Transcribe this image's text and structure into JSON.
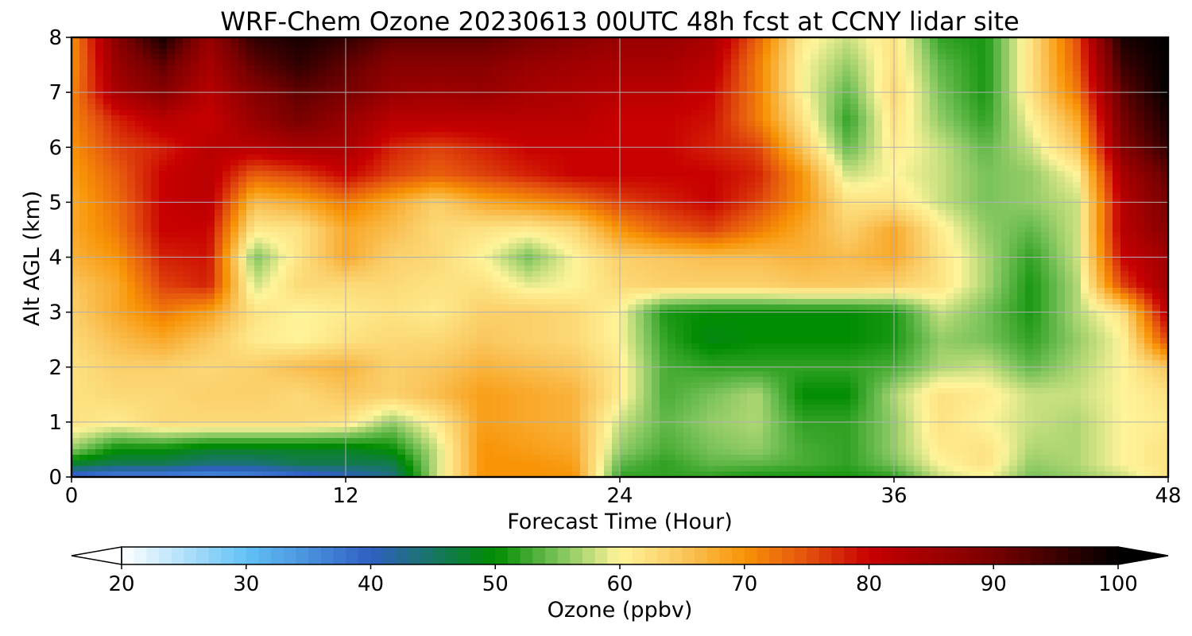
{
  "chart_data": {
    "type": "heatmap",
    "title": "WRF-Chem Ozone  20230613 00UTC 48h fcst at CCNY lidar site",
    "xlabel": "Forecast Time (Hour)",
    "ylabel": "Alt AGL (km)",
    "xlim": [
      0,
      48
    ],
    "ylim": [
      0,
      8
    ],
    "x_ticks": [
      "0",
      "12",
      "24",
      "36",
      "48"
    ],
    "y_ticks": [
      "0",
      "1",
      "2",
      "3",
      "4",
      "5",
      "6",
      "7",
      "8"
    ],
    "grid": true,
    "colorbar": {
      "label": "Ozone  (ppbv)",
      "range": [
        20,
        100
      ],
      "ticks": [
        "20",
        "30",
        "40",
        "50",
        "60",
        "70",
        "80",
        "90",
        "100"
      ],
      "extend": "both",
      "stops": [
        {
          "v": 20,
          "c": "#ffffff"
        },
        {
          "v": 30,
          "c": "#63c2f5"
        },
        {
          "v": 40,
          "c": "#2f5fc4"
        },
        {
          "v": 50,
          "c": "#008c00"
        },
        {
          "v": 55,
          "c": "#79c25a"
        },
        {
          "v": 60,
          "c": "#fff49a"
        },
        {
          "v": 65,
          "c": "#fac75e"
        },
        {
          "v": 70,
          "c": "#f89406"
        },
        {
          "v": 75,
          "c": "#e4520e"
        },
        {
          "v": 80,
          "c": "#c80000"
        },
        {
          "v": 90,
          "c": "#780000"
        },
        {
          "v": 100,
          "c": "#000000"
        }
      ]
    },
    "x": [
      0,
      2,
      4,
      6,
      8,
      10,
      12,
      14,
      16,
      18,
      20,
      22,
      24,
      26,
      28,
      30,
      32,
      34,
      36,
      38,
      40,
      42,
      44,
      46,
      48
    ],
    "y": [
      0,
      0.25,
      0.5,
      1,
      1.5,
      2,
      2.5,
      3,
      3.5,
      4,
      4.5,
      5,
      5.5,
      6,
      6.5,
      7,
      7.5,
      8
    ],
    "z": [
      [
        38,
        36,
        36,
        35,
        36,
        38,
        40,
        43,
        58,
        70,
        70,
        70,
        52,
        52,
        52,
        51,
        51,
        51,
        52,
        58,
        60,
        55,
        56,
        58,
        62
      ],
      [
        48,
        46,
        46,
        44,
        44,
        46,
        46,
        46,
        58,
        70,
        70,
        69,
        54,
        52,
        54,
        54,
        53,
        52,
        55,
        60,
        62,
        56,
        57,
        60,
        62
      ],
      [
        56,
        50,
        50,
        48,
        48,
        48,
        48,
        50,
        58,
        70,
        69,
        68,
        56,
        53,
        55,
        56,
        53,
        52,
        56,
        61,
        62,
        57,
        57,
        60,
        62
      ],
      [
        62,
        61,
        63,
        63,
        63,
        63,
        62,
        56,
        61,
        69,
        68,
        67,
        58,
        54,
        56,
        57,
        52,
        52,
        56,
        62,
        60,
        58,
        57,
        60,
        61
      ],
      [
        62,
        63,
        63,
        64,
        64,
        63,
        65,
        64,
        66,
        69,
        68,
        67,
        61,
        53,
        55,
        57,
        50,
        50,
        57,
        62,
        61,
        58,
        58,
        60,
        62
      ],
      [
        62,
        64,
        64,
        63,
        64,
        66,
        67,
        64,
        65,
        67,
        66,
        65,
        61,
        53,
        52,
        52,
        52,
        52,
        53,
        57,
        58,
        54,
        57,
        60,
        65
      ],
      [
        63,
        66,
        68,
        65,
        61,
        60,
        62,
        63,
        63,
        65,
        64,
        63,
        60,
        52,
        49,
        50,
        50,
        50,
        51,
        56,
        55,
        52,
        56,
        60,
        76
      ],
      [
        64,
        68,
        72,
        69,
        62,
        60,
        61,
        62,
        61,
        64,
        64,
        63,
        60,
        51,
        50,
        50,
        50,
        50,
        51,
        58,
        55,
        51,
        57,
        62,
        82
      ],
      [
        65,
        68,
        76,
        78,
        58,
        63,
        63,
        63,
        62,
        62,
        59,
        60,
        63,
        64,
        64,
        64,
        65,
        65,
        64,
        62,
        57,
        51,
        57,
        76,
        85
      ],
      [
        67,
        70,
        78,
        79,
        55,
        62,
        68,
        64,
        63,
        60,
        55,
        60,
        64,
        65,
        66,
        66,
        67,
        66,
        68,
        62,
        57,
        52,
        58,
        80,
        85
      ],
      [
        68,
        72,
        80,
        80,
        61,
        62,
        68,
        66,
        63,
        62,
        61,
        63,
        70,
        74,
        76,
        72,
        68,
        64,
        68,
        61,
        56,
        54,
        58,
        82,
        88
      ],
      [
        68,
        73,
        80,
        82,
        66,
        68,
        72,
        68,
        64,
        68,
        70,
        72,
        76,
        78,
        80,
        76,
        70,
        62,
        62,
        58,
        55,
        56,
        58,
        82,
        90
      ],
      [
        69,
        74,
        80,
        82,
        74,
        76,
        80,
        76,
        74,
        76,
        78,
        80,
        80,
        80,
        80,
        78,
        70,
        58,
        60,
        58,
        55,
        56,
        60,
        84,
        92
      ],
      [
        70,
        76,
        78,
        82,
        82,
        84,
        84,
        78,
        76,
        78,
        80,
        80,
        80,
        80,
        78,
        76,
        65,
        54,
        61,
        58,
        54,
        58,
        65,
        88,
        96
      ],
      [
        71,
        78,
        82,
        80,
        86,
        90,
        86,
        82,
        82,
        82,
        82,
        82,
        80,
        80,
        79,
        72,
        62,
        52,
        62,
        56,
        52,
        60,
        68,
        90,
        98
      ],
      [
        71,
        84,
        88,
        82,
        88,
        92,
        90,
        86,
        85,
        86,
        84,
        83,
        82,
        82,
        80,
        72,
        60,
        54,
        63,
        55,
        51,
        62,
        72,
        92,
        100
      ],
      [
        70,
        86,
        92,
        84,
        92,
        96,
        92,
        88,
        88,
        88,
        86,
        85,
        84,
        84,
        82,
        72,
        60,
        56,
        62,
        54,
        51,
        62,
        74,
        95,
        100
      ],
      [
        70,
        88,
        98,
        86,
        96,
        98,
        96,
        92,
        92,
        92,
        90,
        88,
        86,
        86,
        84,
        74,
        61,
        58,
        62,
        52,
        51,
        62,
        75,
        98,
        100
      ]
    ]
  }
}
